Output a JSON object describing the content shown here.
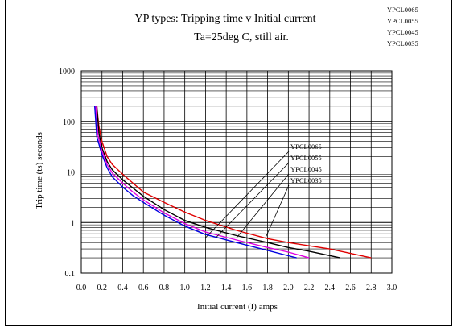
{
  "chart_data": {
    "type": "line",
    "title": "YP types: Tripping time v Initial current",
    "subtitle": "Ta=25deg C, still air.",
    "xlabel": "Initial current (I) amps",
    "ylabel": "Trip time (ts) seconds",
    "xlim": [
      0.0,
      3.0
    ],
    "ylim": [
      0.1,
      1000
    ],
    "y_scale": "log",
    "grid": true,
    "x_ticks": [
      "0.0",
      "0.2",
      "0.4",
      "0.6",
      "0.8",
      "1.0",
      "1.2",
      "1.4",
      "1.6",
      "1.8",
      "2.0",
      "2.2",
      "2.4",
      "2.6",
      "2.8",
      "3.0"
    ],
    "y_ticks": [
      "0.1",
      "1",
      "10",
      "100",
      "1000"
    ],
    "legend_placement": "top-right",
    "series": [
      {
        "name": "YPCL0065",
        "color": "#e00000",
        "x": [
          0.15,
          0.17,
          0.2,
          0.25,
          0.3,
          0.4,
          0.5,
          0.6,
          0.8,
          1.0,
          1.2,
          1.5,
          1.8,
          2.0,
          2.4,
          2.8
        ],
        "y": [
          200,
          80,
          40,
          20,
          14,
          9,
          6,
          4,
          2.5,
          1.6,
          1.1,
          0.7,
          0.48,
          0.4,
          0.3,
          0.2
        ]
      },
      {
        "name": "YPCL0055",
        "color": "#000000",
        "x": [
          0.15,
          0.17,
          0.2,
          0.25,
          0.3,
          0.4,
          0.5,
          0.6,
          0.8,
          1.0,
          1.2,
          1.5,
          1.8,
          2.0,
          2.2,
          2.5
        ],
        "y": [
          200,
          60,
          30,
          16,
          11,
          7,
          4.8,
          3.3,
          1.8,
          1.1,
          0.8,
          0.55,
          0.4,
          0.32,
          0.27,
          0.2
        ]
      },
      {
        "name": "YPCL0045",
        "color": "#e000e0",
        "x": [
          0.14,
          0.16,
          0.2,
          0.25,
          0.3,
          0.4,
          0.5,
          0.6,
          0.8,
          1.0,
          1.2,
          1.5,
          1.8,
          2.0,
          2.2
        ],
        "y": [
          200,
          55,
          26,
          14,
          9.5,
          6,
          4,
          2.8,
          1.55,
          0.95,
          0.65,
          0.45,
          0.32,
          0.26,
          0.2
        ]
      },
      {
        "name": "YPCL0035",
        "color": "#0000e0",
        "x": [
          0.13,
          0.15,
          0.2,
          0.25,
          0.3,
          0.4,
          0.5,
          0.6,
          0.8,
          1.0,
          1.2,
          1.5,
          1.8,
          2.0,
          2.08
        ],
        "y": [
          200,
          50,
          22,
          12,
          8,
          5,
          3.4,
          2.5,
          1.4,
          0.85,
          0.58,
          0.4,
          0.28,
          0.22,
          0.2
        ]
      }
    ],
    "legend": {
      "items": [
        "YPCL0065",
        "YPCL0055",
        "YPCL0045",
        "YPCL0035"
      ]
    },
    "annotations": [
      {
        "text": "YPCL0065",
        "target_x": 1.2,
        "target_y": 0.5
      },
      {
        "text": "YPCL0055",
        "target_x": 1.3,
        "target_y": 0.5
      },
      {
        "text": "YPCL0045",
        "target_x": 1.5,
        "target_y": 0.5
      },
      {
        "text": "YPCL0035",
        "target_x": 1.78,
        "target_y": 0.5
      }
    ]
  }
}
